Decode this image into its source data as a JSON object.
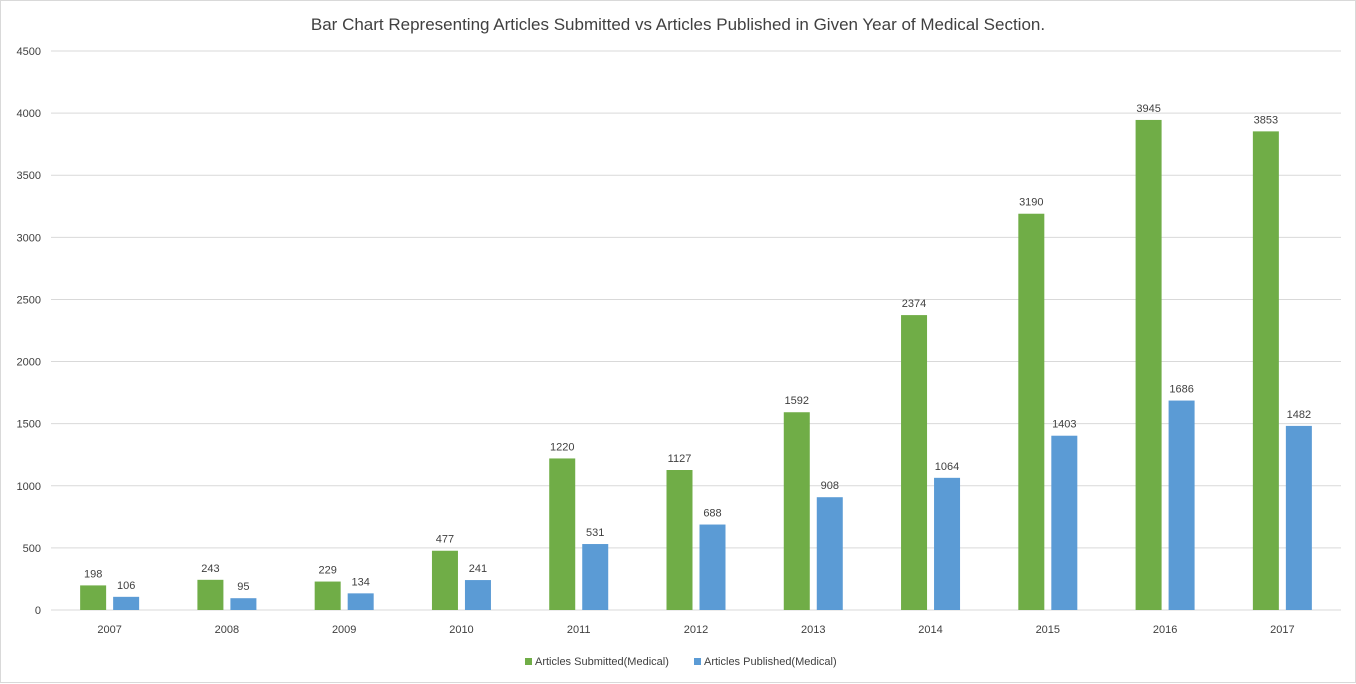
{
  "chart_data": {
    "type": "bar",
    "title": "Bar Chart Representing Articles Submitted vs Articles Published in Given Year of Medical Section.",
    "xlabel": "",
    "ylabel": "",
    "categories": [
      "2007",
      "2008",
      "2009",
      "2010",
      "2011",
      "2012",
      "2013",
      "2014",
      "2015",
      "2016",
      "2017"
    ],
    "series": [
      {
        "name": "Articles Submitted(Medical)",
        "color": "#70ad47",
        "values": [
          198,
          243,
          229,
          477,
          1220,
          1127,
          1592,
          2374,
          3190,
          3945,
          3853
        ]
      },
      {
        "name": "Articles Published(Medical)",
        "color": "#5b9bd5",
        "values": [
          106,
          95,
          134,
          241,
          531,
          688,
          908,
          1064,
          1403,
          1686,
          1482
        ]
      }
    ],
    "ylim": [
      0,
      4500
    ],
    "yticks": [
      0,
      500,
      1000,
      1500,
      2000,
      2500,
      3000,
      3500,
      4000,
      4500
    ],
    "grid": true,
    "data_labels": true,
    "legend_position": "bottom"
  }
}
